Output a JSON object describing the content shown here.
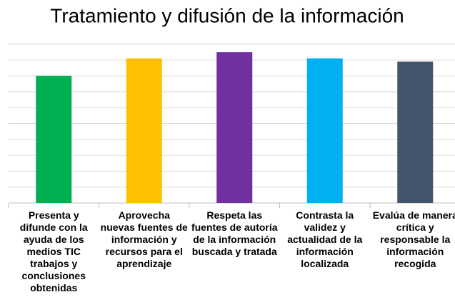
{
  "chart_data": {
    "type": "bar",
    "title": "Tratamiento y difusión de la información",
    "categories": [
      "Presenta y difunde con la ayuda de los medios TIC trabajos y conclusiones obtenidas",
      "Aprovecha nuevas fuentes de información y recursos para el aprendizaje",
      "Respeta las fuentes de autoría de la información buscada y tratada",
      "Contrasta la validez y actualidad de la información localizada",
      "Evalúa de manera crítica y responsable la información recogida"
    ],
    "values": [
      8.0,
      9.1,
      9.5,
      9.1,
      8.9
    ],
    "colors": [
      "#00b050",
      "#ffc000",
      "#7030a0",
      "#00b0f0",
      "#44546a"
    ],
    "ylim": [
      0,
      10
    ],
    "yticks": [
      0,
      1,
      2,
      3,
      4,
      5,
      6,
      7,
      8,
      9,
      10
    ],
    "grid": true
  }
}
